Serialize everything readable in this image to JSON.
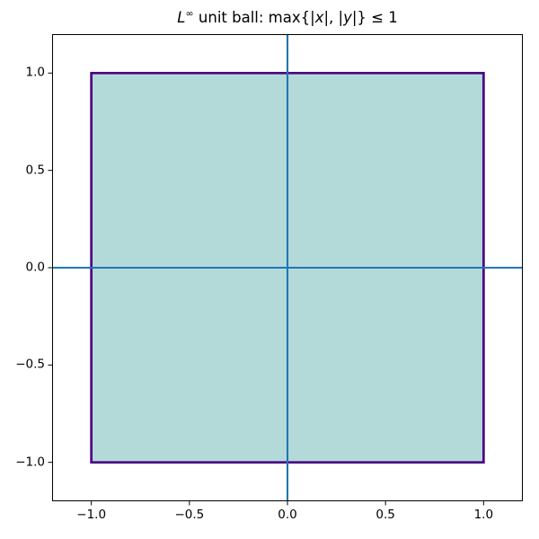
{
  "figure": {
    "title_parts": [
      {
        "text": "L",
        "style": "italic"
      },
      {
        "text": "∞",
        "style": "superscript"
      },
      {
        "text": " unit ball: max{|",
        "style": "normal"
      },
      {
        "text": "x",
        "style": "italic"
      },
      {
        "text": "|, |",
        "style": "normal"
      },
      {
        "text": "y",
        "style": "italic"
      },
      {
        "text": "|} ≤ 1",
        "style": "normal"
      }
    ]
  },
  "chart_data": {
    "type": "area",
    "title": "L^∞ unit ball: max{|x|, |y|} ≤ 1",
    "description": "Filled square depicting the L-infinity unit ball: all points (x, y) with max(|x|, |y|) <= 1. Blue axis lines mark x = 0 and y = 0.",
    "polygon_vertices": [
      [
        -1,
        -1
      ],
      [
        1,
        -1
      ],
      [
        1,
        1
      ],
      [
        -1,
        1
      ]
    ],
    "xlim": [
      -1.2,
      1.2
    ],
    "ylim": [
      -1.2,
      1.2
    ],
    "x_ticks": [
      -1.0,
      -0.5,
      0.0,
      0.5,
      1.0
    ],
    "x_tick_labels": [
      "−1.0",
      "−0.5",
      "0.0",
      "0.5",
      "1.0"
    ],
    "y_ticks": [
      1.0,
      0.5,
      0.0,
      -0.5,
      -1.0
    ],
    "y_tick_labels": [
      "1.0",
      "0.5",
      "0.0",
      "−0.5",
      "−1.0"
    ],
    "axis_lines": [
      {
        "type": "axhline",
        "y": 0
      },
      {
        "type": "axvline",
        "x": 0
      }
    ],
    "grid": false,
    "legend": null,
    "colors": {
      "fill": "#b3d9d9",
      "edge": "#4b0082",
      "axis_line": "#1f77b4",
      "spine": "#000000",
      "tick": "#000000",
      "text": "#000000",
      "background": "#ffffff"
    }
  }
}
